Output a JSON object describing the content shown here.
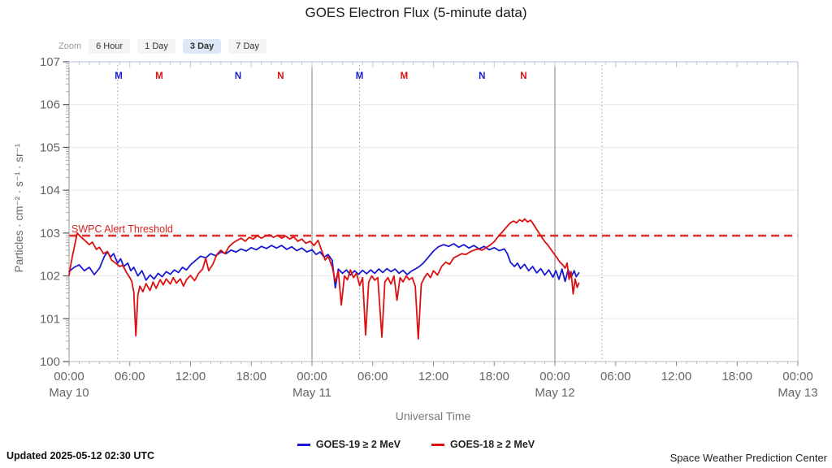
{
  "title": "GOES Electron Flux (5-minute data)",
  "zoom_controls": {
    "label": "Zoom",
    "options": [
      "6 Hour",
      "1 Day",
      "3 Day",
      "7 Day"
    ],
    "selected": "3 Day"
  },
  "footer": {
    "updated": "Updated 2025-05-12 02:30 UTC",
    "source": "Space Weather Prediction Center"
  },
  "chart_data": {
    "type": "line",
    "title": "GOES Electron Flux (5-minute data)",
    "xlabel": "Universal Time",
    "ylabel": "Particles · cm⁻² · s⁻¹ · sr⁻¹",
    "y_scale": "log10",
    "y_exponent_range": [
      0,
      7
    ],
    "y_tick_labels": [
      "100",
      "101",
      "102",
      "103",
      "104",
      "105",
      "106",
      "107"
    ],
    "x_unit": "hours since 2025-05-10 00:00 UTC",
    "x_range_hours": [
      0,
      72
    ],
    "x_major_tick_hours": 6,
    "x_minor_tick_hours": 1,
    "x_tick_labels": [
      "00:00",
      "06:00",
      "12:00",
      "18:00",
      "00:00",
      "06:00",
      "12:00",
      "18:00",
      "00:00",
      "06:00",
      "12:00",
      "18:00",
      "00:00"
    ],
    "x_date_labels": [
      {
        "t": 0,
        "label": "May 10"
      },
      {
        "t": 24,
        "label": "May 11"
      },
      {
        "t": 48,
        "label": "May 12"
      },
      {
        "t": 72,
        "label": "May 13"
      }
    ],
    "grid": {
      "horizontal_decades": true,
      "day_boundaries_t": [
        24,
        48
      ],
      "satellite_midnight_dotted_t": [
        4.8,
        28.7,
        52.65
      ]
    },
    "threshold": {
      "label": "SWPC Alert Threshold",
      "log10_value": 2.94,
      "color": "#e03030",
      "style": "dashed"
    },
    "markers": [
      {
        "t": 4.9,
        "letter": "M",
        "series": "GOES-19"
      },
      {
        "t": 8.9,
        "letter": "M",
        "series": "GOES-18"
      },
      {
        "t": 16.7,
        "letter": "N",
        "series": "GOES-19"
      },
      {
        "t": 20.9,
        "letter": "N",
        "series": "GOES-18"
      },
      {
        "t": 28.7,
        "letter": "M",
        "series": "GOES-19"
      },
      {
        "t": 33.1,
        "letter": "M",
        "series": "GOES-18"
      },
      {
        "t": 40.8,
        "letter": "N",
        "series": "GOES-19"
      },
      {
        "t": 44.9,
        "letter": "N",
        "series": "GOES-18"
      }
    ],
    "legend_position": "bottom-center",
    "points_format": "[hours_since_may10_00utc, log10_flux]",
    "series": [
      {
        "name": "GOES-19 ≥ 2 MeV",
        "color": "#1a1ad1",
        "points": [
          [
            0,
            2.1
          ],
          [
            0.5,
            2.2
          ],
          [
            1,
            2.26
          ],
          [
            1.5,
            2.12
          ],
          [
            2,
            2.2
          ],
          [
            2.5,
            2.03
          ],
          [
            3,
            2.18
          ],
          [
            3.5,
            2.46
          ],
          [
            3.8,
            2.56
          ],
          [
            4.1,
            2.44
          ],
          [
            4.4,
            2.52
          ],
          [
            4.8,
            2.3
          ],
          [
            5.1,
            2.4
          ],
          [
            5.4,
            2.22
          ],
          [
            5.8,
            2.3
          ],
          [
            6.1,
            2.12
          ],
          [
            6.4,
            2.2
          ],
          [
            6.8,
            2.0
          ],
          [
            7.2,
            2.12
          ],
          [
            7.6,
            1.9
          ],
          [
            8,
            2.02
          ],
          [
            8.4,
            1.93
          ],
          [
            8.8,
            2.06
          ],
          [
            9.2,
            1.98
          ],
          [
            9.6,
            2.1
          ],
          [
            10,
            2.04
          ],
          [
            10.4,
            2.14
          ],
          [
            10.8,
            2.08
          ],
          [
            11.2,
            2.2
          ],
          [
            11.6,
            2.14
          ],
          [
            12,
            2.26
          ],
          [
            12.5,
            2.36
          ],
          [
            13,
            2.46
          ],
          [
            13.5,
            2.42
          ],
          [
            14,
            2.52
          ],
          [
            14.5,
            2.47
          ],
          [
            15,
            2.56
          ],
          [
            15.5,
            2.52
          ],
          [
            16,
            2.6
          ],
          [
            16.5,
            2.56
          ],
          [
            17,
            2.63
          ],
          [
            17.5,
            2.58
          ],
          [
            18,
            2.66
          ],
          [
            18.5,
            2.61
          ],
          [
            19,
            2.69
          ],
          [
            19.5,
            2.64
          ],
          [
            20,
            2.71
          ],
          [
            20.5,
            2.65
          ],
          [
            21,
            2.71
          ],
          [
            21.5,
            2.62
          ],
          [
            22,
            2.68
          ],
          [
            22.5,
            2.59
          ],
          [
            23,
            2.65
          ],
          [
            23.5,
            2.56
          ],
          [
            24,
            2.61
          ],
          [
            24.4,
            2.5
          ],
          [
            24.8,
            2.56
          ],
          [
            25.2,
            2.44
          ],
          [
            25.6,
            2.5
          ],
          [
            26,
            2.36
          ],
          [
            26.3,
            1.72
          ],
          [
            26.6,
            2.16
          ],
          [
            27,
            2.06
          ],
          [
            27.4,
            2.14
          ],
          [
            27.8,
            2.02
          ],
          [
            28.2,
            2.12
          ],
          [
            28.6,
            2.04
          ],
          [
            29,
            2.13
          ],
          [
            29.4,
            2.05
          ],
          [
            29.8,
            2.14
          ],
          [
            30.2,
            2.06
          ],
          [
            30.6,
            2.16
          ],
          [
            31,
            2.08
          ],
          [
            31.4,
            2.17
          ],
          [
            31.8,
            2.1
          ],
          [
            32.2,
            2.16
          ],
          [
            32.6,
            2.06
          ],
          [
            33,
            2.13
          ],
          [
            33.4,
            2.03
          ],
          [
            33.8,
            2.11
          ],
          [
            34.2,
            2.16
          ],
          [
            34.6,
            2.22
          ],
          [
            35,
            2.3
          ],
          [
            35.5,
            2.44
          ],
          [
            36,
            2.58
          ],
          [
            36.5,
            2.68
          ],
          [
            37,
            2.73
          ],
          [
            37.5,
            2.69
          ],
          [
            38,
            2.75
          ],
          [
            38.5,
            2.67
          ],
          [
            39,
            2.73
          ],
          [
            39.5,
            2.65
          ],
          [
            40,
            2.71
          ],
          [
            40.5,
            2.63
          ],
          [
            41,
            2.69
          ],
          [
            41.5,
            2.61
          ],
          [
            42,
            2.66
          ],
          [
            42.5,
            2.59
          ],
          [
            43,
            2.63
          ],
          [
            43.3,
            2.52
          ],
          [
            43.6,
            2.32
          ],
          [
            44,
            2.22
          ],
          [
            44.3,
            2.3
          ],
          [
            44.6,
            2.17
          ],
          [
            45,
            2.27
          ],
          [
            45.4,
            2.12
          ],
          [
            45.8,
            2.22
          ],
          [
            46.2,
            2.07
          ],
          [
            46.6,
            2.17
          ],
          [
            47,
            2.02
          ],
          [
            47.4,
            2.14
          ],
          [
            47.8,
            1.97
          ],
          [
            48.1,
            2.12
          ],
          [
            48.4,
            1.92
          ],
          [
            48.7,
            2.16
          ],
          [
            49,
            1.87
          ],
          [
            49.3,
            2.14
          ],
          [
            49.6,
            1.97
          ],
          [
            49.9,
            2.12
          ],
          [
            50.1,
            1.98
          ],
          [
            50.35,
            2.07
          ]
        ]
      },
      {
        "name": "GOES-18 ≥ 2 MeV",
        "color": "#dc1010",
        "points": [
          [
            0,
            2.02
          ],
          [
            0.3,
            2.42
          ],
          [
            0.8,
            3.0
          ],
          [
            1.2,
            2.9
          ],
          [
            1.6,
            2.82
          ],
          [
            2,
            2.73
          ],
          [
            2.3,
            2.79
          ],
          [
            2.7,
            2.62
          ],
          [
            3,
            2.67
          ],
          [
            3.4,
            2.52
          ],
          [
            3.8,
            2.57
          ],
          [
            4.2,
            2.37
          ],
          [
            4.6,
            2.3
          ],
          [
            5,
            2.22
          ],
          [
            5.3,
            2.25
          ],
          [
            5.7,
            2.07
          ],
          [
            6,
            1.96
          ],
          [
            6.2,
            1.87
          ],
          [
            6.4,
            1.62
          ],
          [
            6.6,
            0.6
          ],
          [
            6.8,
            1.56
          ],
          [
            7,
            1.76
          ],
          [
            7.3,
            1.63
          ],
          [
            7.6,
            1.82
          ],
          [
            8,
            1.66
          ],
          [
            8.3,
            1.86
          ],
          [
            8.6,
            1.71
          ],
          [
            9,
            1.91
          ],
          [
            9.3,
            1.79
          ],
          [
            9.6,
            1.93
          ],
          [
            10,
            1.81
          ],
          [
            10.3,
            1.96
          ],
          [
            10.6,
            1.83
          ],
          [
            11,
            1.93
          ],
          [
            11.3,
            1.76
          ],
          [
            11.6,
            1.91
          ],
          [
            12,
            2.01
          ],
          [
            12.4,
            1.89
          ],
          [
            12.8,
            2.06
          ],
          [
            13.2,
            2.16
          ],
          [
            13.5,
            2.41
          ],
          [
            13.8,
            2.12
          ],
          [
            14.2,
            2.27
          ],
          [
            14.6,
            2.5
          ],
          [
            15,
            2.6
          ],
          [
            15.4,
            2.52
          ],
          [
            15.8,
            2.68
          ],
          [
            16.2,
            2.77
          ],
          [
            16.6,
            2.83
          ],
          [
            17,
            2.88
          ],
          [
            17.4,
            2.81
          ],
          [
            17.8,
            2.9
          ],
          [
            18.2,
            2.86
          ],
          [
            18.6,
            2.94
          ],
          [
            19,
            2.88
          ],
          [
            19.4,
            2.93
          ],
          [
            19.8,
            2.96
          ],
          [
            20.2,
            2.9
          ],
          [
            20.6,
            2.95
          ],
          [
            21,
            2.88
          ],
          [
            21.4,
            2.93
          ],
          [
            21.8,
            2.86
          ],
          [
            22.2,
            2.91
          ],
          [
            22.6,
            2.81
          ],
          [
            23,
            2.86
          ],
          [
            23.4,
            2.76
          ],
          [
            23.8,
            2.81
          ],
          [
            24.2,
            2.71
          ],
          [
            24.6,
            2.83
          ],
          [
            25,
            2.56
          ],
          [
            25.3,
            2.37
          ],
          [
            25.6,
            2.46
          ],
          [
            26,
            2.21
          ],
          [
            26.3,
            1.86
          ],
          [
            26.6,
            2.11
          ],
          [
            26.9,
            1.32
          ],
          [
            27.2,
            2.0
          ],
          [
            27.5,
            1.91
          ],
          [
            27.8,
            2.14
          ],
          [
            28.1,
            1.96
          ],
          [
            28.4,
            2.06
          ],
          [
            28.7,
            1.77
          ],
          [
            29,
            1.96
          ],
          [
            29.3,
            0.62
          ],
          [
            29.6,
            1.86
          ],
          [
            29.9,
            2.0
          ],
          [
            30.2,
            1.9
          ],
          [
            30.5,
            1.96
          ],
          [
            30.9,
            0.57
          ],
          [
            31.2,
            1.86
          ],
          [
            31.5,
            1.96
          ],
          [
            31.8,
            1.81
          ],
          [
            32.1,
            2.0
          ],
          [
            32.4,
            1.43
          ],
          [
            32.7,
            1.96
          ],
          [
            33,
            1.86
          ],
          [
            33.3,
            2.0
          ],
          [
            33.6,
            1.91
          ],
          [
            33.9,
            1.96
          ],
          [
            34.2,
            1.76
          ],
          [
            34.5,
            0.53
          ],
          [
            34.8,
            1.81
          ],
          [
            35.1,
            1.96
          ],
          [
            35.4,
            2.06
          ],
          [
            35.7,
            1.96
          ],
          [
            36,
            2.12
          ],
          [
            36.4,
            2.02
          ],
          [
            36.8,
            2.22
          ],
          [
            37.2,
            2.32
          ],
          [
            37.6,
            2.27
          ],
          [
            38,
            2.42
          ],
          [
            38.4,
            2.47
          ],
          [
            38.8,
            2.52
          ],
          [
            39.2,
            2.5
          ],
          [
            39.6,
            2.56
          ],
          [
            40,
            2.6
          ],
          [
            40.4,
            2.63
          ],
          [
            40.8,
            2.6
          ],
          [
            41.2,
            2.66
          ],
          [
            41.6,
            2.72
          ],
          [
            42,
            2.8
          ],
          [
            42.4,
            2.92
          ],
          [
            42.7,
            3.0
          ],
          [
            43,
            3.08
          ],
          [
            43.3,
            3.16
          ],
          [
            43.6,
            3.24
          ],
          [
            43.9,
            3.28
          ],
          [
            44.2,
            3.24
          ],
          [
            44.5,
            3.31
          ],
          [
            44.8,
            3.27
          ],
          [
            45,
            3.33
          ],
          [
            45.3,
            3.26
          ],
          [
            45.6,
            3.3
          ],
          [
            45.9,
            3.2
          ],
          [
            46.1,
            3.12
          ],
          [
            46.3,
            3.05
          ],
          [
            46.5,
            2.97
          ],
          [
            46.7,
            2.9
          ],
          [
            47,
            2.8
          ],
          [
            47.3,
            2.72
          ],
          [
            47.6,
            2.62
          ],
          [
            47.9,
            2.52
          ],
          [
            48.2,
            2.42
          ],
          [
            48.5,
            2.32
          ],
          [
            48.8,
            2.25
          ],
          [
            49,
            2.18
          ],
          [
            49.2,
            2.3
          ],
          [
            49.4,
            1.92
          ],
          [
            49.6,
            2.1
          ],
          [
            49.8,
            1.58
          ],
          [
            50,
            1.93
          ],
          [
            50.2,
            1.73
          ],
          [
            50.35,
            1.83
          ]
        ]
      }
    ]
  }
}
